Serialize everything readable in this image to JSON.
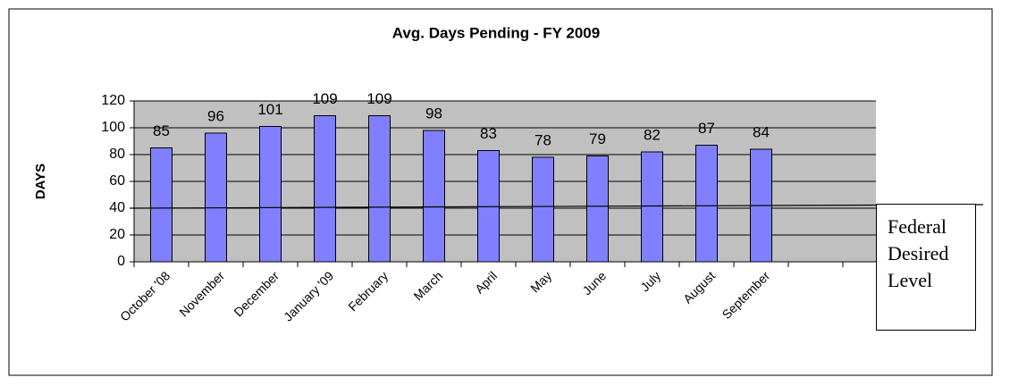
{
  "chart_data": {
    "type": "bar",
    "title": "Avg. Days Pending - FY 2009",
    "y_label": "DAYS",
    "categories": [
      "October '08",
      "November",
      "December",
      "January '09",
      "February",
      "March",
      "April",
      "May",
      "June",
      "July",
      "August",
      "September"
    ],
    "values": [
      85,
      96,
      101,
      109,
      109,
      98,
      83,
      78,
      79,
      82,
      87,
      84
    ],
    "color": "#8080ff",
    "ylim": [
      0,
      120
    ],
    "yticks": [
      0,
      20,
      40,
      60,
      80,
      100,
      120
    ],
    "grid": true,
    "reference_line": {
      "value": 40,
      "label": "Federal Desired Level"
    }
  }
}
